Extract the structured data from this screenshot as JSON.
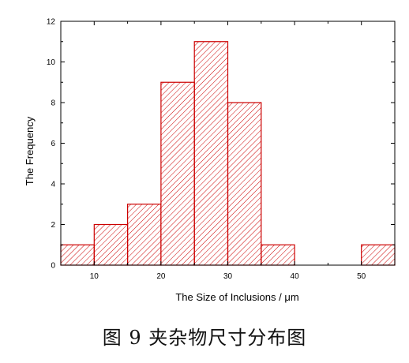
{
  "caption": "图 9 夹杂物尺寸分布图",
  "chart_data": {
    "type": "bar",
    "histogram": true,
    "bins": [
      {
        "x0": 5,
        "x1": 10,
        "count": 1
      },
      {
        "x0": 10,
        "x1": 15,
        "count": 2
      },
      {
        "x0": 15,
        "x1": 20,
        "count": 3
      },
      {
        "x0": 20,
        "x1": 25,
        "count": 9
      },
      {
        "x0": 25,
        "x1": 30,
        "count": 11
      },
      {
        "x0": 30,
        "x1": 35,
        "count": 8
      },
      {
        "x0": 35,
        "x1": 40,
        "count": 1
      },
      {
        "x0": 50,
        "x1": 55,
        "count": 1
      }
    ],
    "xlabel": "The Size of Inclusions / μm",
    "ylabel": "The Frequency",
    "xlim": [
      5,
      55
    ],
    "ylim": [
      0,
      12
    ],
    "xticks": [
      10,
      20,
      30,
      40,
      50
    ],
    "yticks": [
      0,
      2,
      4,
      6,
      8,
      10,
      12
    ],
    "fill": "diagonal-hatch",
    "grid": false,
    "colors": {
      "bar_edge": "#cc0000",
      "hatch": "#cc0000",
      "axis": "#000000"
    }
  }
}
